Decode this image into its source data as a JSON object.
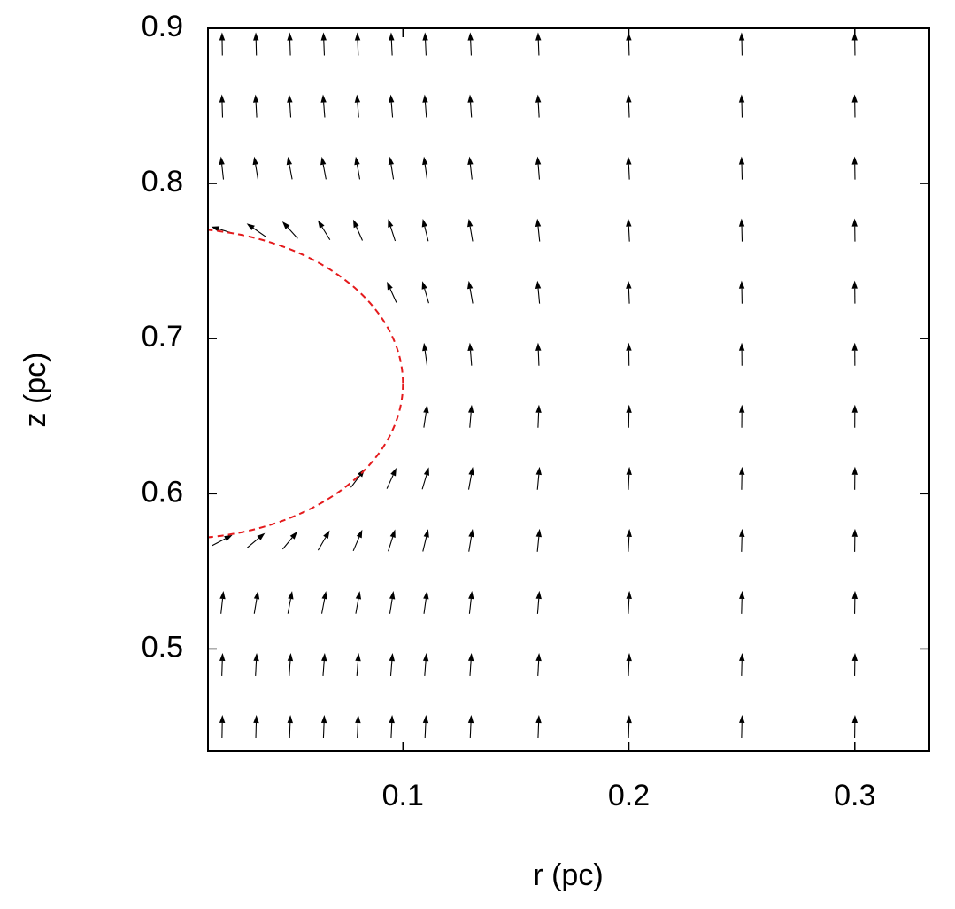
{
  "chart_data": {
    "type": "quiver",
    "xlabel": "r (pc)",
    "ylabel": "z (pc)",
    "xlim": [
      0.0137,
      0.333
    ],
    "ylim": [
      0.434,
      0.9
    ],
    "xticks": [
      0.1,
      0.2,
      0.3
    ],
    "yticks": [
      0.5,
      0.6,
      0.7,
      0.8,
      0.9
    ],
    "color": "#000000",
    "x": [
      0.02,
      0.035,
      0.05,
      0.065,
      0.08,
      0.095,
      0.11,
      0.13,
      0.16,
      0.2,
      0.25,
      0.3
    ],
    "y": [
      0.45,
      0.49,
      0.53,
      0.57,
      0.61,
      0.65,
      0.69,
      0.73,
      0.77,
      0.81,
      0.85,
      0.89
    ],
    "angles": [
      [
        1,
        1.5,
        2,
        2.2,
        2.5,
        2.6,
        2.6,
        2.5,
        2.1,
        1.7,
        1.2,
        0.8
      ],
      [
        1.8,
        3,
        3.8,
        4.3,
        4.5,
        4.5,
        4.3,
        3.8,
        3.1,
        2.2,
        1.4,
        0.9
      ],
      [
        6.2,
        9.3,
        10.6,
        10.7,
        10,
        9,
        7.8,
        6.3,
        4.5,
        2.8,
        1.5,
        0.9
      ],
      [
        62.6,
        50.4,
        39.5,
        30.2,
        23,
        17.6,
        13.4,
        9.4,
        5.7,
        3,
        1.5,
        0.8
      ],
      [
        null,
        null,
        null,
        null,
        36.8,
        24.5,
        16.6,
        10.3,
        5.3,
        2.6,
        1.1,
        0.6
      ],
      [
        null,
        null,
        null,
        null,
        null,
        null,
        8.5,
        4.9,
        2.4,
        1,
        0.5,
        0.3
      ],
      [
        null,
        null,
        null,
        null,
        null,
        null,
        -7.7,
        -4.4,
        -2.2,
        -0.9,
        -0.5,
        -0.3
      ],
      [
        null,
        null,
        null,
        null,
        null,
        -24.4,
        -16.2,
        -10,
        -5.2,
        -2.5,
        -1.1,
        -0.6
      ],
      [
        -72.9,
        -55.4,
        -42,
        -31.7,
        -23.9,
        -18,
        -13.7,
        -9.6,
        -5.8,
        -3,
        -1.5,
        -0.8
      ],
      [
        -6.3,
        -9.4,
        -10.7,
        -10.8,
        -10.1,
        -9.1,
        -7.9,
        -6.4,
        -4.6,
        -2.8,
        -1.5,
        -0.9
      ],
      [
        -1.8,
        -3.1,
        -3.9,
        -4.4,
        -4.6,
        -4.6,
        -4.4,
        -3.9,
        -3.2,
        -2.2,
        -1.4,
        -0.9
      ],
      [
        -0.9,
        -1.5,
        -2,
        -2.3,
        -2.5,
        -2.7,
        -2.7,
        -2.6,
        -2.2,
        -1.7,
        -1.2,
        -0.8
      ]
    ],
    "circle": {
      "center": [
        0,
        0.671
      ],
      "radius": 0.1,
      "color": "#e41a1c"
    }
  }
}
